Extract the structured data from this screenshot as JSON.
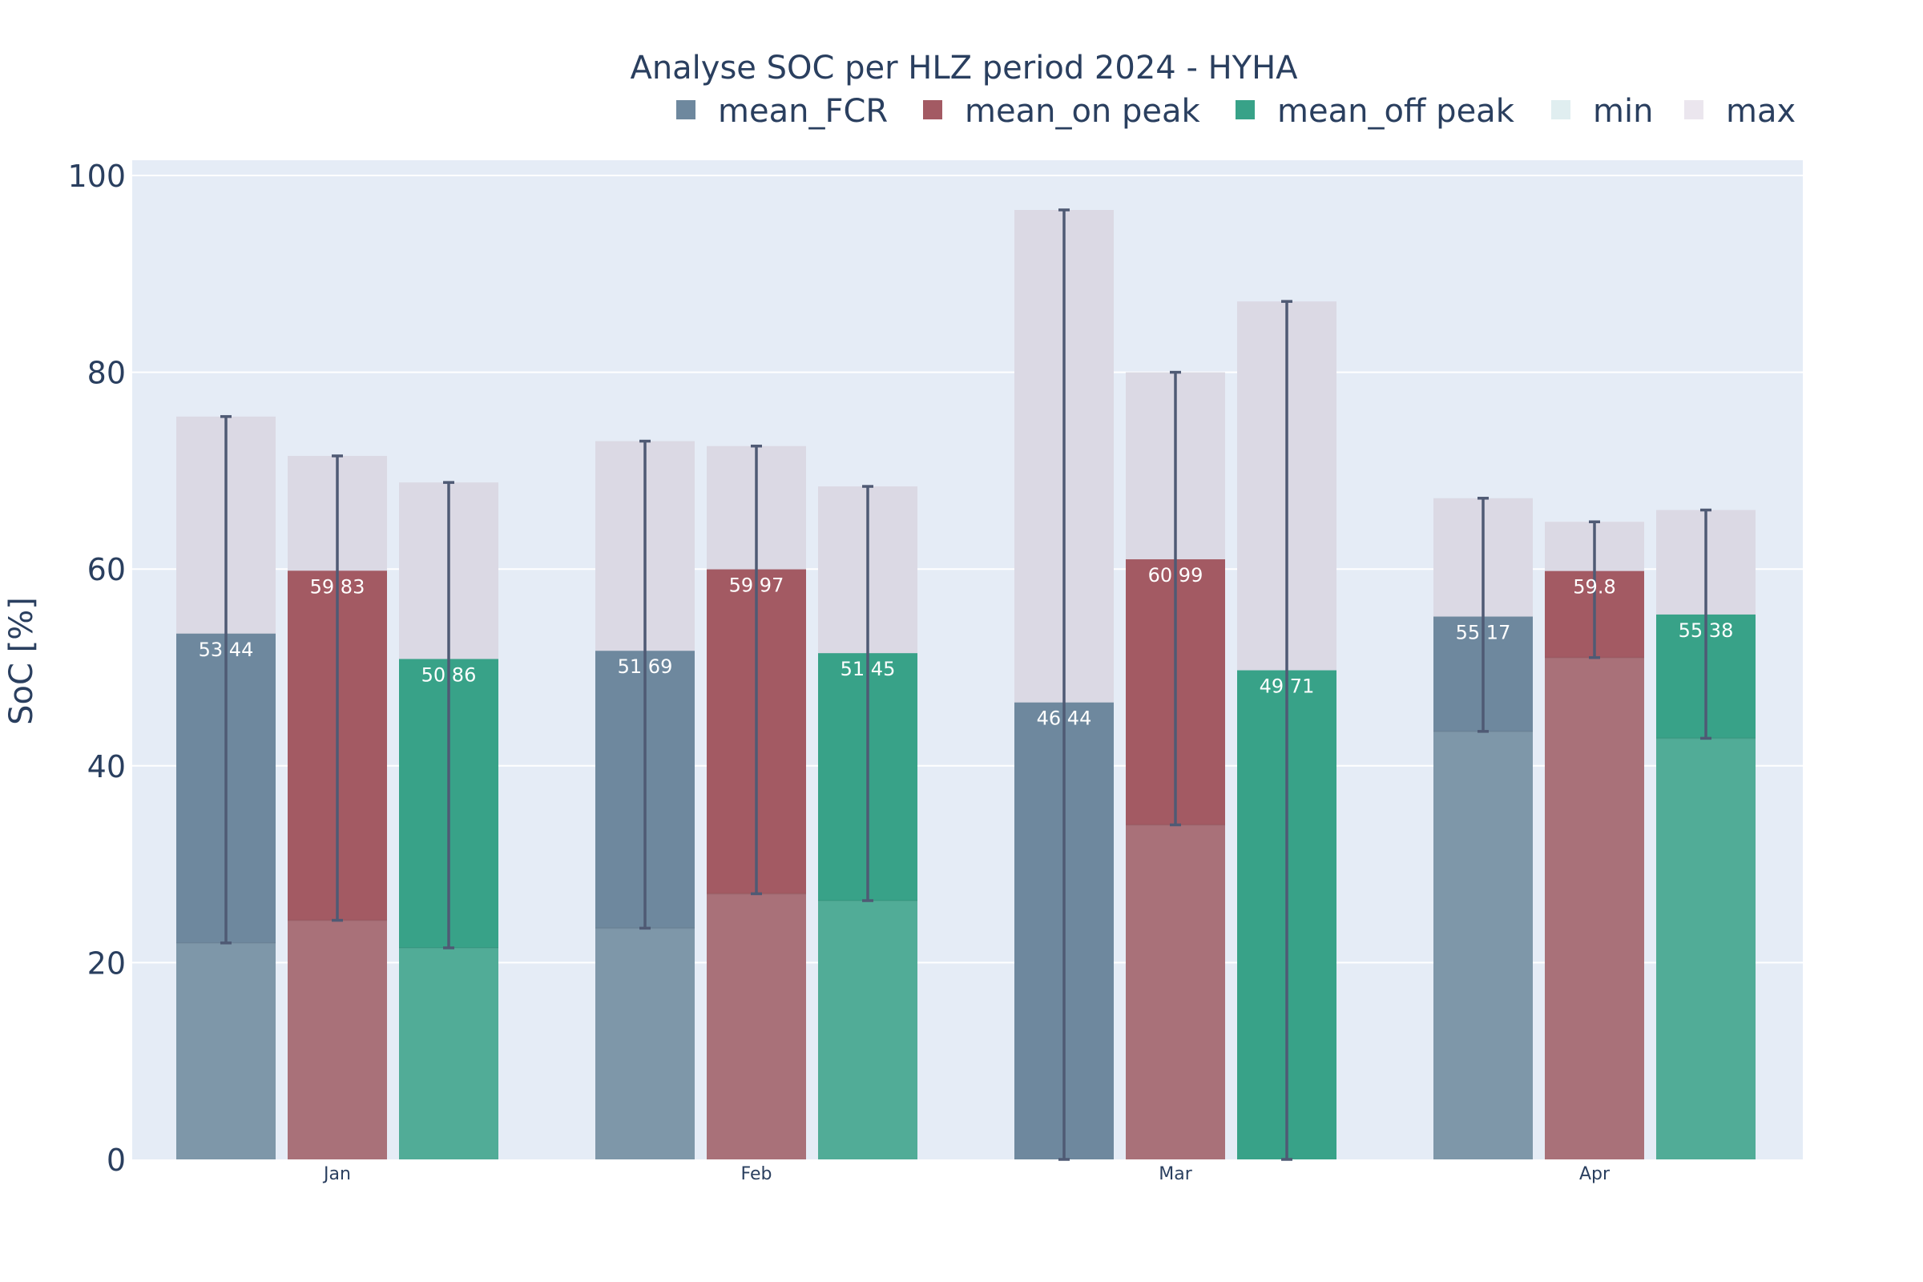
{
  "chart_data": {
    "type": "bar",
    "title": "Analyse SOC per HLZ period 2024 - HYHA",
    "xlabel": "",
    "ylabel": "SoC [%]",
    "ylim": [
      0,
      100
    ],
    "yticks": [
      0,
      20,
      40,
      60,
      80,
      100
    ],
    "grid": true,
    "legend_position": "top-right",
    "categories": [
      "Jan",
      "Feb",
      "Mar",
      "Apr"
    ],
    "legend": [
      {
        "name": "mean_FCR",
        "color": "#6e889e"
      },
      {
        "name": "mean_on peak",
        "color": "#a35a63"
      },
      {
        "name": "mean_off peak",
        "color": "#38a288"
      },
      {
        "name": "min",
        "color": "#e0eef0"
      },
      {
        "name": "max",
        "color": "#ebe6ee"
      }
    ],
    "series": [
      {
        "name": "mean_FCR",
        "color": "#6e889e",
        "values": [
          53.44,
          51.69,
          46.44,
          55.17
        ],
        "labels": [
          "53 44",
          "51 69",
          "46 44",
          "55 17"
        ],
        "min": [
          22,
          23.5,
          0,
          43.5
        ],
        "max": [
          75.5,
          73,
          96.5,
          67.2
        ]
      },
      {
        "name": "mean_on peak",
        "color": "#a35a63",
        "values": [
          59.83,
          59.97,
          60.99,
          59.8
        ],
        "labels": [
          "59 83",
          "59 97",
          "60 99",
          "59.8"
        ],
        "min": [
          24.3,
          27,
          34,
          51
        ],
        "max": [
          71.5,
          72.5,
          80,
          64.8
        ]
      },
      {
        "name": "mean_off peak",
        "color": "#38a288",
        "values": [
          50.86,
          51.45,
          49.71,
          55.38
        ],
        "labels": [
          "50 86",
          "51 45",
          "49 71",
          "55 38"
        ],
        "min": [
          21.5,
          26.3,
          0,
          42.8
        ],
        "max": [
          68.8,
          68.4,
          87.2,
          66
        ]
      }
    ]
  }
}
